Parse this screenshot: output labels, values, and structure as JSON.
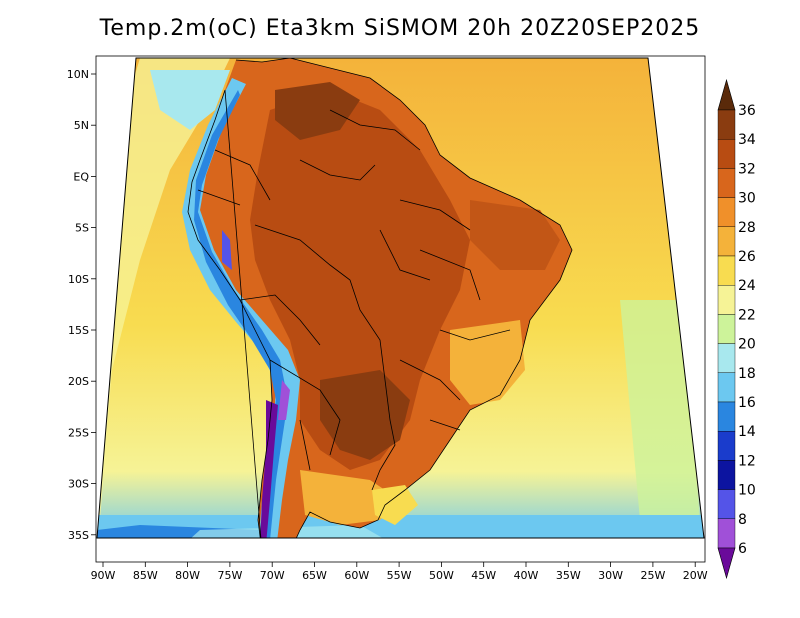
{
  "title": "Temp.2m(oC) Eta3km SiSMOM 20h 20Z20SEP2025",
  "map": {
    "lon_labels": [
      "90W",
      "85W",
      "80W",
      "75W",
      "70W",
      "65W",
      "60W",
      "55W",
      "50W",
      "45W",
      "40W",
      "35W",
      "30W",
      "25W",
      "20W"
    ],
    "lat_labels": [
      "10N",
      "5N",
      "EQ",
      "5S",
      "10S",
      "15S",
      "20S",
      "25S",
      "30S",
      "35S"
    ],
    "extent": {
      "lon": [
        -91,
        -19
      ],
      "lat": [
        -38,
        12
      ]
    },
    "variable": "2 m air temperature",
    "units": "oC"
  },
  "colorbar": {
    "labels": [
      "36",
      "34",
      "32",
      "30",
      "28",
      "26",
      "24",
      "22",
      "20",
      "18",
      "16",
      "14",
      "12",
      "10",
      "8",
      "6"
    ],
    "colors": [
      "#5a2a0a",
      "#8a3c10",
      "#b84c12",
      "#d8661c",
      "#f0902a",
      "#f4b23a",
      "#f8dc50",
      "#f6f396",
      "#cdf39a",
      "#a8e8ee",
      "#6cc8f0",
      "#2a86e0",
      "#1a3ccc",
      "#0c14a0",
      "#5454e8",
      "#a050d8",
      "#6a0a9a"
    ]
  }
}
